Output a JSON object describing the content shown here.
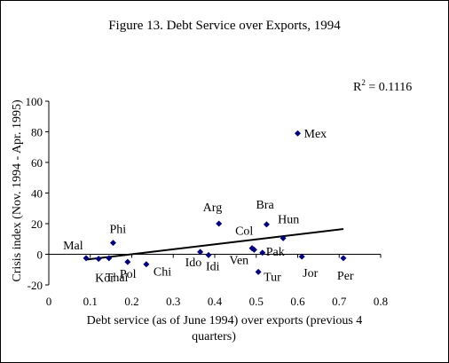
{
  "chart_data": {
    "type": "scatter",
    "title": "Figure 13. Debt Service over Exports, 1994",
    "xlabel_lines": [
      "Debt service (as of June 1994) over exports (previous 4",
      "quarters)"
    ],
    "ylabel": "Crisis index (Nov. 1994 - Apr. 1995)",
    "r2_prefix": "R",
    "r2_exp": "2",
    "r2_value": " = 0.1116",
    "xlim": [
      0,
      0.8
    ],
    "ylim": [
      -20,
      100
    ],
    "x_ticks": [
      0,
      0.1,
      0.2,
      0.3,
      0.4,
      0.5,
      0.6,
      0.7,
      0.8
    ],
    "y_ticks": [
      -20,
      0,
      20,
      40,
      60,
      80,
      100
    ],
    "marker_color": "#000080",
    "trendline": {
      "x": [
        0.09,
        0.71
      ],
      "y": [
        -3.5,
        16.5
      ]
    },
    "points": [
      {
        "label": "Mal",
        "x": 0.09,
        "y": -2.5
      },
      {
        "label": "Kor",
        "x": 0.12,
        "y": -3.0
      },
      {
        "label": "Thai",
        "x": 0.145,
        "y": -2.5
      },
      {
        "label": "Phi",
        "x": 0.155,
        "y": 7.5
      },
      {
        "label": "Pol",
        "x": 0.19,
        "y": -5.0
      },
      {
        "label": "Chi",
        "x": 0.235,
        "y": -6.5
      },
      {
        "label": "Ido",
        "x": 0.365,
        "y": 1.5
      },
      {
        "label": "Idi",
        "x": 0.385,
        "y": -0.5
      },
      {
        "label": "Arg",
        "x": 0.41,
        "y": 20.0
      },
      {
        "label": "Col",
        "x": 0.49,
        "y": 4.0
      },
      {
        "label": "Ven",
        "x": 0.495,
        "y": 3.0
      },
      {
        "label": "Tur",
        "x": 0.505,
        "y": -11.5
      },
      {
        "label": "Pak",
        "x": 0.515,
        "y": 1.0
      },
      {
        "label": "Bra",
        "x": 0.525,
        "y": 19.5
      },
      {
        "label": "Hun",
        "x": 0.565,
        "y": 10.5
      },
      {
        "label": "Mex",
        "x": 0.6,
        "y": 79.0
      },
      {
        "label": "Jor",
        "x": 0.61,
        "y": -1.5
      },
      {
        "label": "Per",
        "x": 0.71,
        "y": -2.5
      }
    ]
  }
}
